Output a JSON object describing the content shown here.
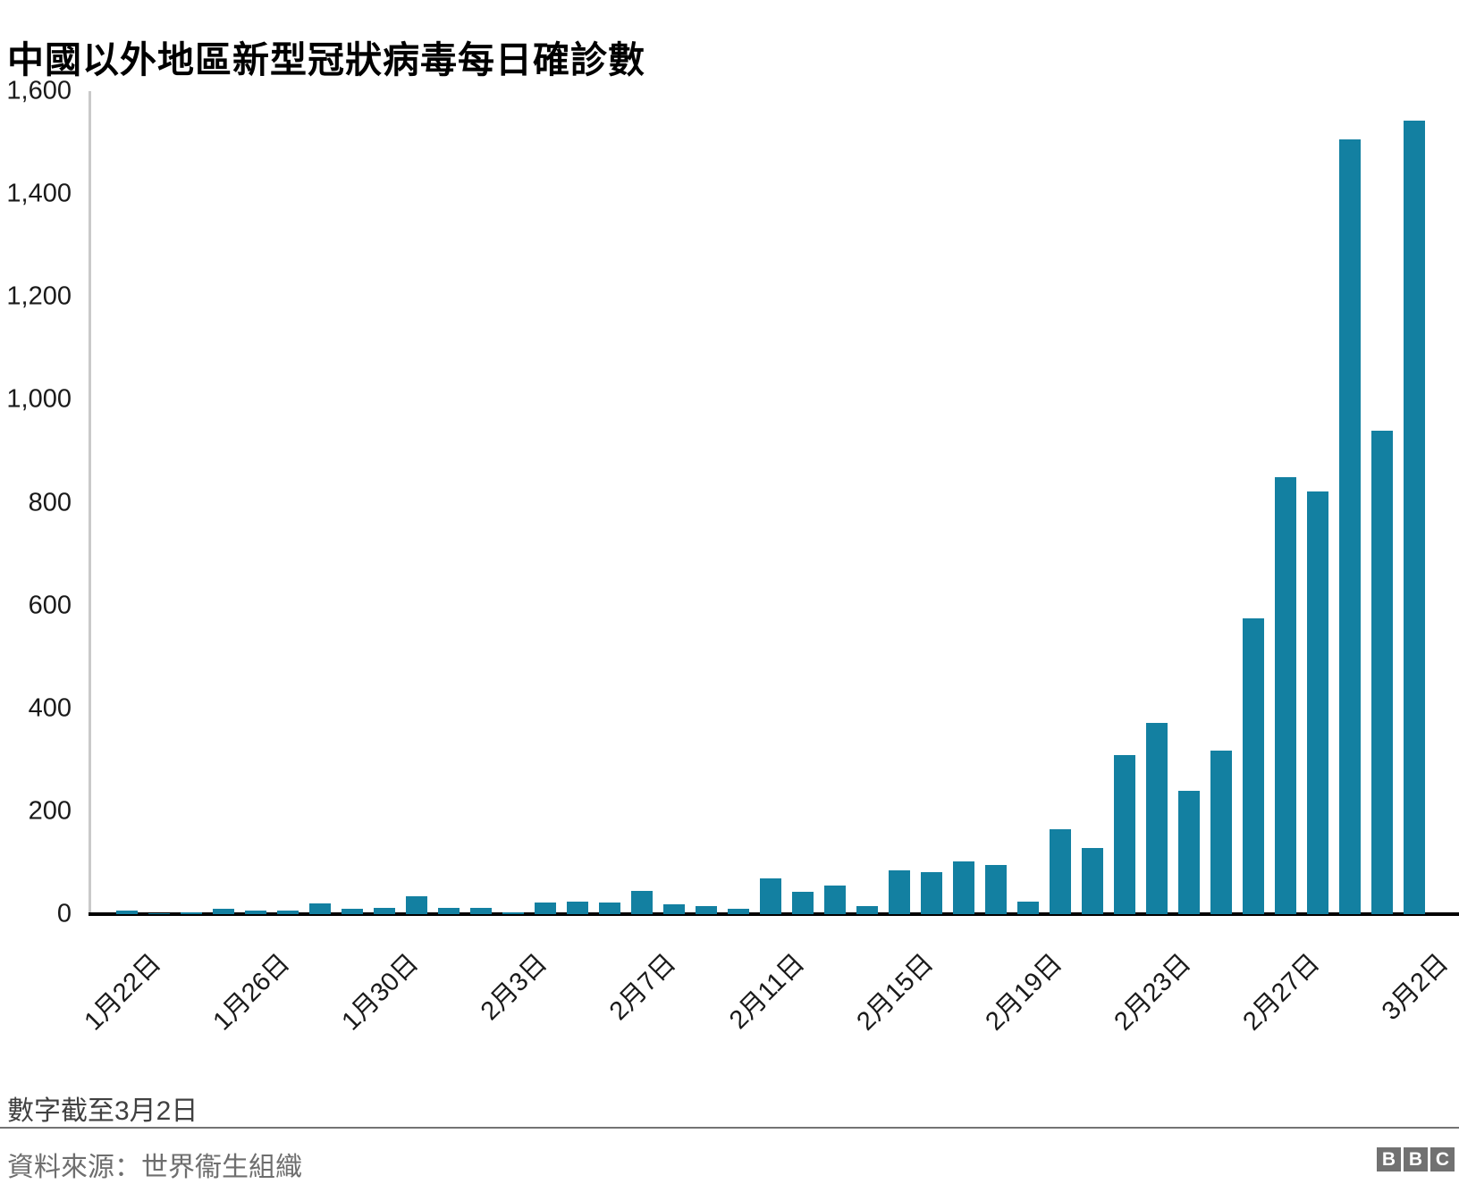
{
  "title": "中國以外地區新型冠狀病毒每日確診數",
  "footer": {
    "note": "數字截至3月2日",
    "source": "資料來源：世界衞生組織"
  },
  "logo": {
    "letters": [
      "B",
      "B",
      "C"
    ]
  },
  "colors": {
    "bar": "#1380a1",
    "axis_line": "#000000",
    "y_axis_line": "#c9c9c9",
    "divider": "#737373",
    "logo_bg": "#717171",
    "tick_text": "#1a1a1a"
  },
  "chart_data": {
    "type": "bar",
    "title": "中國以外地區新型冠狀病毒每日確診數",
    "categories": [
      "1月22日",
      "1月23日",
      "1月24日",
      "1月25日",
      "1月26日",
      "1月27日",
      "1月28日",
      "1月29日",
      "1月30日",
      "1月31日",
      "2月1日",
      "2月2日",
      "2月3日",
      "2月4日",
      "2月5日",
      "2月6日",
      "2月7日",
      "2月8日",
      "2月9日",
      "2月10日",
      "2月11日",
      "2月12日",
      "2月13日",
      "2月14日",
      "2月15日",
      "2月16日",
      "2月17日",
      "2月18日",
      "2月19日",
      "2月20日",
      "2月21日",
      "2月22日",
      "2月23日",
      "2月24日",
      "2月25日",
      "2月26日",
      "2月27日",
      "2月28日",
      "2月29日",
      "3月1日",
      "3月2日"
    ],
    "values": [
      7,
      1,
      3,
      10,
      7,
      7,
      20,
      10,
      12,
      35,
      13,
      13,
      3,
      23,
      24,
      22,
      46,
      19,
      15,
      10,
      70,
      44,
      56,
      16,
      85,
      81,
      102,
      95,
      25,
      165,
      128,
      310,
      372,
      240,
      318,
      575,
      850,
      822,
      1506,
      940,
      1542
    ],
    "x_tick_labels": [
      "1月22日",
      "1月26日",
      "1月30日",
      "2月3日",
      "2月7日",
      "2月11日",
      "2月15日",
      "2月19日",
      "2月23日",
      "2月27日",
      "3月2日"
    ],
    "x_tick_every": 4,
    "xlabel": "",
    "ylabel": "",
    "ylim": [
      0,
      1600
    ],
    "y_tick_step": 200,
    "grid": false,
    "legend": "none",
    "bar_color": "#1380a1"
  }
}
